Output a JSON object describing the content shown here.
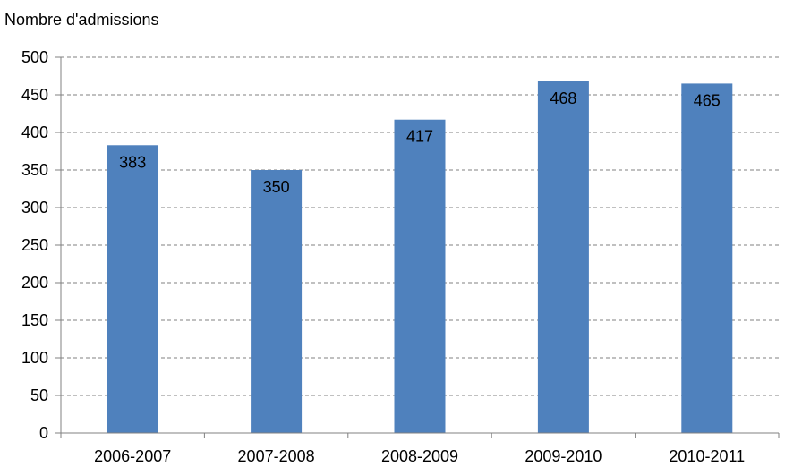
{
  "chart_data": {
    "type": "bar",
    "title": "",
    "xlabel": "",
    "ylabel": "Nombre d'admissions",
    "categories": [
      "2006-2007",
      "2007-2008",
      "2008-2009",
      "2009-2010",
      "2010-2011"
    ],
    "values": [
      383,
      350,
      417,
      468,
      465
    ],
    "ylim": [
      0,
      500
    ],
    "yticks": [
      0,
      50,
      100,
      150,
      200,
      250,
      300,
      350,
      400,
      450,
      500
    ],
    "grid": true,
    "legend": "none",
    "bar_color": "#4F81BD"
  }
}
